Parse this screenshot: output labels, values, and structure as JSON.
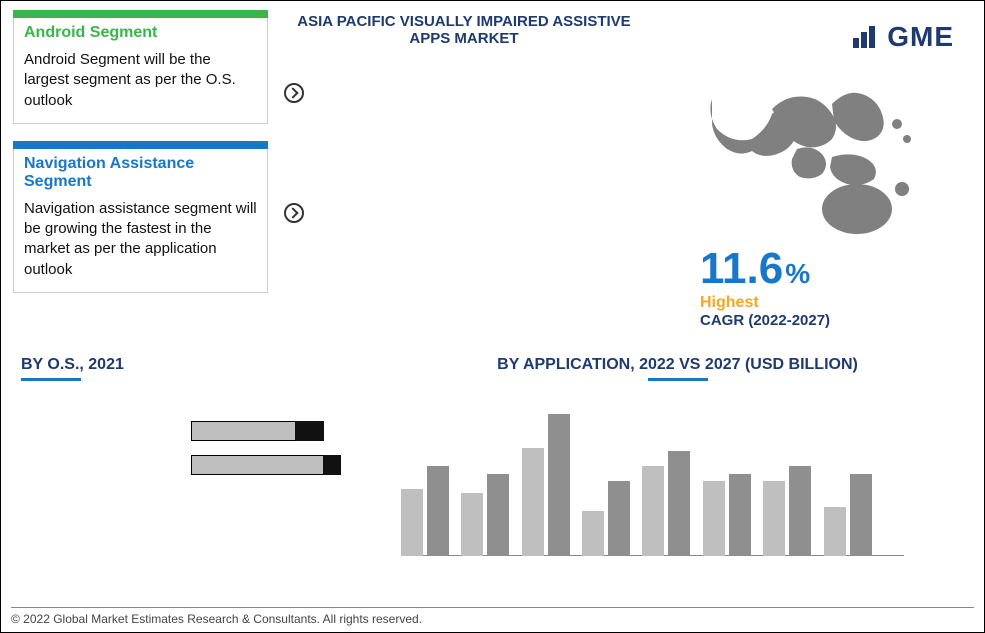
{
  "title": "ASIA PACIFIC VISUALLY IMPAIRED ASSISTIVE APPS MARKET",
  "logo": {
    "text": "GME"
  },
  "boxes": {
    "android": {
      "title": "Android Segment",
      "color": "#39b54a",
      "title_color": "#39b54a",
      "desc": "Android Segment will be the largest segment as per the O.S. outlook"
    },
    "navigation": {
      "title": "Navigation Assistance Segment",
      "color": "#1877c9",
      "title_color": "#1877c9",
      "desc": "Navigation assistance segment will be growing the fastest in the market as per the application outlook"
    }
  },
  "cagr": {
    "value": "11.6",
    "pct": "%",
    "highest": "Highest",
    "label": "CAGR (2022-2027)",
    "value_color": "#1877c9",
    "highest_color": "#f5a623",
    "label_color": "#1e3a6e"
  },
  "os_chart": {
    "title": "BY O.S., 2021",
    "type": "stacked-hbar",
    "bars": [
      {
        "total_pct": 78,
        "dark_pct": 22
      },
      {
        "total_pct": 88,
        "dark_pct": 12
      }
    ],
    "fill_color": "#bfbfbf",
    "end_color": "#111111",
    "border": "#000000"
  },
  "app_chart": {
    "title": "BY APPLICATION, 2022 VS 2027 (USD BILLION)",
    "type": "grouped-bar",
    "ylim": 100,
    "colors": {
      "a": "#bfbfbf",
      "b": "#8f8f8f"
    },
    "groups": [
      {
        "x": 0,
        "a": 45,
        "b": 60
      },
      {
        "x": 12,
        "a": 42,
        "b": 55
      },
      {
        "x": 24,
        "a": 72,
        "b": 95
      },
      {
        "x": 36,
        "a": 30,
        "b": 50
      },
      {
        "x": 48,
        "a": 60,
        "b": 70
      },
      {
        "x": 60,
        "a": 50,
        "b": 55
      },
      {
        "x": 72,
        "a": 50,
        "b": 60
      },
      {
        "x": 84,
        "a": 33,
        "b": 55
      }
    ],
    "legend": [
      {
        "color": "#bfbfbf"
      },
      {
        "color": "#8f8f8f"
      }
    ]
  },
  "copyright": "© 2022 Global Market Estimates Research & Consultants. All rights reserved."
}
